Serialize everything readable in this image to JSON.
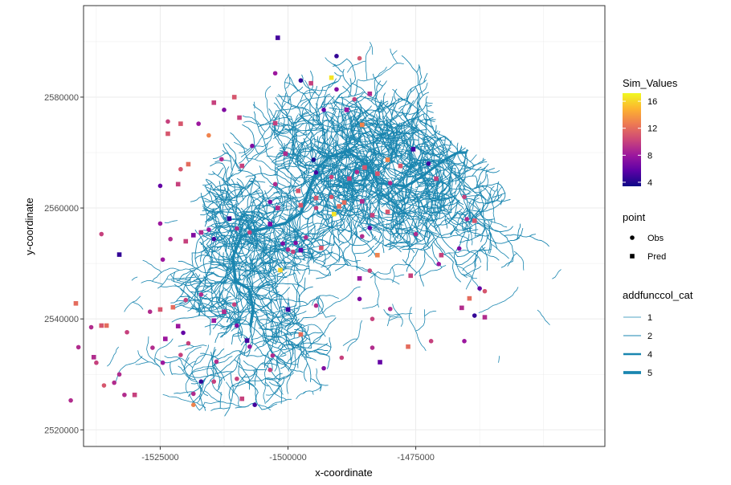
{
  "chart_data": {
    "type": "scatter",
    "xlabel": "x-coordinate",
    "ylabel": "y-coordinate",
    "xlim": [
      -1540000,
      -1438000
    ],
    "ylim": [
      2517000,
      2596500
    ],
    "x_ticks": [
      -1525000,
      -1500000,
      -1475000
    ],
    "x_tick_labels": [
      "-1525000",
      "-1500000",
      "-1475000"
    ],
    "y_ticks": [
      2520000,
      2540000,
      2560000,
      2580000
    ],
    "y_tick_labels": [
      "2520000",
      "2540000",
      "2560000",
      "2580000"
    ],
    "grid": true,
    "legend_position": "right",
    "sim_values_legend": {
      "title": "Sim_Values",
      "range": [
        3.4,
        17.2
      ],
      "breaks": [
        4,
        8,
        12,
        16
      ],
      "break_labels": [
        "4",
        "8",
        "12",
        "16"
      ],
      "colors": [
        "#0d0887",
        "#5c01a6",
        "#9c179e",
        "#cc4778",
        "#ed7953",
        "#fdb42f",
        "#f0f921"
      ]
    },
    "point_legend": {
      "title": "point",
      "entries": [
        {
          "label": "Obs",
          "shape": "circle"
        },
        {
          "label": "Pred",
          "shape": "square"
        }
      ]
    },
    "network_legend": {
      "title": "addfunccol_cat",
      "entries": [
        {
          "label": "1",
          "width": 0.8
        },
        {
          "label": "2",
          "width": 1.0
        },
        {
          "label": "4",
          "width": 2.5
        },
        {
          "label": "5",
          "width": 3.8
        }
      ],
      "color": "#1a86b0"
    },
    "points": [
      {
        "x": -1502000,
        "y": 2590700,
        "v": 5,
        "shape": "Pred"
      },
      {
        "x": -1490500,
        "y": 2587400,
        "v": 4.5,
        "shape": "Obs"
      },
      {
        "x": -1486000,
        "y": 2587000,
        "v": 11,
        "shape": "Obs"
      },
      {
        "x": -1491500,
        "y": 2583500,
        "v": 16.5,
        "shape": "Pred"
      },
      {
        "x": -1497500,
        "y": 2583000,
        "v": 4.5,
        "shape": "Obs"
      },
      {
        "x": -1495500,
        "y": 2582500,
        "v": 10,
        "shape": "Pred"
      },
      {
        "x": -1502500,
        "y": 2584300,
        "v": 8,
        "shape": "Obs"
      },
      {
        "x": -1490500,
        "y": 2581400,
        "v": 7,
        "shape": "Obs"
      },
      {
        "x": -1487000,
        "y": 2579600,
        "v": 10,
        "shape": "Obs"
      },
      {
        "x": -1484000,
        "y": 2580600,
        "v": 9,
        "shape": "Pred"
      },
      {
        "x": -1510500,
        "y": 2580000,
        "v": 11,
        "shape": "Pred"
      },
      {
        "x": -1514500,
        "y": 2579000,
        "v": 10,
        "shape": "Pred"
      },
      {
        "x": -1512500,
        "y": 2577700,
        "v": 7,
        "shape": "Obs"
      },
      {
        "x": -1509500,
        "y": 2576300,
        "v": 10,
        "shape": "Pred"
      },
      {
        "x": -1502500,
        "y": 2575300,
        "v": 10,
        "shape": "Pred"
      },
      {
        "x": -1523500,
        "y": 2575600,
        "v": 10,
        "shape": "Obs"
      },
      {
        "x": -1523500,
        "y": 2573400,
        "v": 11,
        "shape": "Pred"
      },
      {
        "x": -1521000,
        "y": 2575200,
        "v": 11,
        "shape": "Pred"
      },
      {
        "x": -1517500,
        "y": 2575200,
        "v": 8,
        "shape": "Obs"
      },
      {
        "x": -1515500,
        "y": 2573100,
        "v": 13,
        "shape": "Obs"
      },
      {
        "x": -1493000,
        "y": 2577700,
        "v": 6,
        "shape": "Obs"
      },
      {
        "x": -1488500,
        "y": 2577700,
        "v": 8,
        "shape": "Pred"
      },
      {
        "x": -1485500,
        "y": 2575000,
        "v": 13,
        "shape": "Pred"
      },
      {
        "x": -1507000,
        "y": 2571200,
        "v": 7,
        "shape": "Obs"
      },
      {
        "x": -1500500,
        "y": 2569800,
        "v": 9,
        "shape": "Pred"
      },
      {
        "x": -1495000,
        "y": 2568700,
        "v": 3.8,
        "shape": "Obs"
      },
      {
        "x": -1494500,
        "y": 2566400,
        "v": 5,
        "shape": "Obs"
      },
      {
        "x": -1491500,
        "y": 2565600,
        "v": 10,
        "shape": "Obs"
      },
      {
        "x": -1488000,
        "y": 2565300,
        "v": 10,
        "shape": "Pred"
      },
      {
        "x": -1486500,
        "y": 2566500,
        "v": 9,
        "shape": "Obs"
      },
      {
        "x": -1485000,
        "y": 2567300,
        "v": 11,
        "shape": "Pred"
      },
      {
        "x": -1482500,
        "y": 2566200,
        "v": 11,
        "shape": "Pred"
      },
      {
        "x": -1480500,
        "y": 2568700,
        "v": 13,
        "shape": "Pred"
      },
      {
        "x": -1478000,
        "y": 2567600,
        "v": 11,
        "shape": "Pred"
      },
      {
        "x": -1475500,
        "y": 2570600,
        "v": 5,
        "shape": "Pred"
      },
      {
        "x": -1472500,
        "y": 2568000,
        "v": 5,
        "shape": "Obs"
      },
      {
        "x": -1471000,
        "y": 2565300,
        "v": 10,
        "shape": "Pred"
      },
      {
        "x": -1480000,
        "y": 2564500,
        "v": 9,
        "shape": "Obs"
      },
      {
        "x": -1521000,
        "y": 2567000,
        "v": 11,
        "shape": "Obs"
      },
      {
        "x": -1519500,
        "y": 2567900,
        "v": 12,
        "shape": "Pred"
      },
      {
        "x": -1521500,
        "y": 2564300,
        "v": 10,
        "shape": "Pred"
      },
      {
        "x": -1525000,
        "y": 2564000,
        "v": 6,
        "shape": "Obs"
      },
      {
        "x": -1513000,
        "y": 2568800,
        "v": 9,
        "shape": "Obs"
      },
      {
        "x": -1509000,
        "y": 2567600,
        "v": 10,
        "shape": "Pred"
      },
      {
        "x": -1502500,
        "y": 2564300,
        "v": 9,
        "shape": "Obs"
      },
      {
        "x": -1498000,
        "y": 2563100,
        "v": 11,
        "shape": "Pred"
      },
      {
        "x": -1494500,
        "y": 2561800,
        "v": 11,
        "shape": "Pred"
      },
      {
        "x": -1503500,
        "y": 2561100,
        "v": 7,
        "shape": "Obs"
      },
      {
        "x": -1502000,
        "y": 2560000,
        "v": 9,
        "shape": "Pred"
      },
      {
        "x": -1497500,
        "y": 2560500,
        "v": 11,
        "shape": "Pred"
      },
      {
        "x": -1494500,
        "y": 2560000,
        "v": 10,
        "shape": "Obs"
      },
      {
        "x": -1491500,
        "y": 2562000,
        "v": 11,
        "shape": "Obs"
      },
      {
        "x": -1490000,
        "y": 2560300,
        "v": 12,
        "shape": "Pred"
      },
      {
        "x": -1489000,
        "y": 2561000,
        "v": 12,
        "shape": "Pred"
      },
      {
        "x": -1491000,
        "y": 2558900,
        "v": 16.5,
        "shape": "Pred"
      },
      {
        "x": -1485500,
        "y": 2561200,
        "v": 9,
        "shape": "Pred"
      },
      {
        "x": -1483500,
        "y": 2558700,
        "v": 10,
        "shape": "Pred"
      },
      {
        "x": -1480500,
        "y": 2559300,
        "v": 11,
        "shape": "Pred"
      },
      {
        "x": -1511500,
        "y": 2558100,
        "v": 4.5,
        "shape": "Pred"
      },
      {
        "x": -1510000,
        "y": 2556300,
        "v": 9,
        "shape": "Obs"
      },
      {
        "x": -1507500,
        "y": 2555600,
        "v": 10,
        "shape": "Obs"
      },
      {
        "x": -1503500,
        "y": 2557100,
        "v": 7,
        "shape": "Pred"
      },
      {
        "x": -1515500,
        "y": 2556100,
        "v": 8,
        "shape": "Obs"
      },
      {
        "x": -1517000,
        "y": 2555600,
        "v": 9,
        "shape": "Pred"
      },
      {
        "x": -1518500,
        "y": 2555100,
        "v": 7,
        "shape": "Pred"
      },
      {
        "x": -1514500,
        "y": 2554400,
        "v": 5,
        "shape": "Obs"
      },
      {
        "x": -1525000,
        "y": 2557200,
        "v": 8,
        "shape": "Obs"
      },
      {
        "x": -1523000,
        "y": 2554400,
        "v": 9,
        "shape": "Obs"
      },
      {
        "x": -1520000,
        "y": 2554000,
        "v": 10,
        "shape": "Pred"
      },
      {
        "x": -1536500,
        "y": 2555300,
        "v": 10,
        "shape": "Obs"
      },
      {
        "x": -1533000,
        "y": 2551600,
        "v": 4.5,
        "shape": "Pred"
      },
      {
        "x": -1524500,
        "y": 2550700,
        "v": 8,
        "shape": "Obs"
      },
      {
        "x": -1496500,
        "y": 2554700,
        "v": 9,
        "shape": "Obs"
      },
      {
        "x": -1493500,
        "y": 2552800,
        "v": 11,
        "shape": "Pred"
      },
      {
        "x": -1501000,
        "y": 2553600,
        "v": 7,
        "shape": "Obs"
      },
      {
        "x": -1498500,
        "y": 2553700,
        "v": 7,
        "shape": "Obs"
      },
      {
        "x": -1497500,
        "y": 2552400,
        "v": 6,
        "shape": "Pred"
      },
      {
        "x": -1500000,
        "y": 2552500,
        "v": 9,
        "shape": "Obs"
      },
      {
        "x": -1499000,
        "y": 2552100,
        "v": 10,
        "shape": "Obs"
      },
      {
        "x": -1485500,
        "y": 2554900,
        "v": 9,
        "shape": "Obs"
      },
      {
        "x": -1484000,
        "y": 2556400,
        "v": 6,
        "shape": "Obs"
      },
      {
        "x": -1482500,
        "y": 2551500,
        "v": 13,
        "shape": "Pred"
      },
      {
        "x": -1501500,
        "y": 2548800,
        "v": 16,
        "shape": "Pred"
      },
      {
        "x": -1486000,
        "y": 2547300,
        "v": 8,
        "shape": "Pred"
      },
      {
        "x": -1484000,
        "y": 2548700,
        "v": 10,
        "shape": "Obs"
      },
      {
        "x": -1475000,
        "y": 2555300,
        "v": 9,
        "shape": "Obs"
      },
      {
        "x": -1470000,
        "y": 2551500,
        "v": 10,
        "shape": "Pred"
      },
      {
        "x": -1466500,
        "y": 2552700,
        "v": 7,
        "shape": "Obs"
      },
      {
        "x": -1470500,
        "y": 2549900,
        "v": 8,
        "shape": "Obs"
      },
      {
        "x": -1476000,
        "y": 2547800,
        "v": 10,
        "shape": "Pred"
      },
      {
        "x": -1465000,
        "y": 2558000,
        "v": 9,
        "shape": "Obs"
      },
      {
        "x": -1463500,
        "y": 2557700,
        "v": 11,
        "shape": "Pred"
      },
      {
        "x": -1465500,
        "y": 2562000,
        "v": 10,
        "shape": "Obs"
      },
      {
        "x": -1462500,
        "y": 2545500,
        "v": 6,
        "shape": "Obs"
      },
      {
        "x": -1461500,
        "y": 2545000,
        "v": 11,
        "shape": "Obs"
      },
      {
        "x": -1464500,
        "y": 2543700,
        "v": 12,
        "shape": "Pred"
      },
      {
        "x": -1466000,
        "y": 2542000,
        "v": 9,
        "shape": "Pred"
      },
      {
        "x": -1463500,
        "y": 2540600,
        "v": 4.5,
        "shape": "Obs"
      },
      {
        "x": -1461500,
        "y": 2540300,
        "v": 9,
        "shape": "Pred"
      },
      {
        "x": -1500000,
        "y": 2541700,
        "v": 5,
        "shape": "Pred"
      },
      {
        "x": -1494500,
        "y": 2542400,
        "v": 9,
        "shape": "Obs"
      },
      {
        "x": -1486000,
        "y": 2543600,
        "v": 7,
        "shape": "Obs"
      },
      {
        "x": -1483500,
        "y": 2540000,
        "v": 10,
        "shape": "Obs"
      },
      {
        "x": -1480000,
        "y": 2541800,
        "v": 9,
        "shape": "Obs"
      },
      {
        "x": -1510500,
        "y": 2542600,
        "v": 10,
        "shape": "Obs"
      },
      {
        "x": -1512500,
        "y": 2541300,
        "v": 9,
        "shape": "Pred"
      },
      {
        "x": -1514500,
        "y": 2539700,
        "v": 8,
        "shape": "Pred"
      },
      {
        "x": -1517000,
        "y": 2544400,
        "v": 9,
        "shape": "Obs"
      },
      {
        "x": -1520000,
        "y": 2543400,
        "v": 10,
        "shape": "Obs"
      },
      {
        "x": -1522500,
        "y": 2542100,
        "v": 12,
        "shape": "Pred"
      },
      {
        "x": -1525000,
        "y": 2541700,
        "v": 11,
        "shape": "Pred"
      },
      {
        "x": -1527000,
        "y": 2541300,
        "v": 9,
        "shape": "Obs"
      },
      {
        "x": -1521500,
        "y": 2538700,
        "v": 8,
        "shape": "Pred"
      },
      {
        "x": -1520500,
        "y": 2537500,
        "v": 6,
        "shape": "Obs"
      },
      {
        "x": -1524000,
        "y": 2536400,
        "v": 8,
        "shape": "Pred"
      },
      {
        "x": -1519500,
        "y": 2535600,
        "v": 10,
        "shape": "Obs"
      },
      {
        "x": -1541500,
        "y": 2542800,
        "v": 12,
        "shape": "Pred"
      },
      {
        "x": -1538500,
        "y": 2538500,
        "v": 9,
        "shape": "Obs"
      },
      {
        "x": -1536500,
        "y": 2538800,
        "v": 11,
        "shape": "Pred"
      },
      {
        "x": -1535500,
        "y": 2538800,
        "v": 12,
        "shape": "Pred"
      },
      {
        "x": -1531500,
        "y": 2537600,
        "v": 10,
        "shape": "Obs"
      },
      {
        "x": -1541000,
        "y": 2534900,
        "v": 9,
        "shape": "Obs"
      },
      {
        "x": -1538000,
        "y": 2533100,
        "v": 9,
        "shape": "Pred"
      },
      {
        "x": -1537500,
        "y": 2532100,
        "v": 10,
        "shape": "Obs"
      },
      {
        "x": -1533000,
        "y": 2530000,
        "v": 9,
        "shape": "Obs"
      },
      {
        "x": -1536000,
        "y": 2528000,
        "v": 11,
        "shape": "Obs"
      },
      {
        "x": -1534000,
        "y": 2528500,
        "v": 9,
        "shape": "Obs"
      },
      {
        "x": -1532000,
        "y": 2526300,
        "v": 9,
        "shape": "Obs"
      },
      {
        "x": -1530000,
        "y": 2526300,
        "v": 10,
        "shape": "Pred"
      },
      {
        "x": -1542500,
        "y": 2525300,
        "v": 9,
        "shape": "Obs"
      },
      {
        "x": -1526500,
        "y": 2534800,
        "v": 9,
        "shape": "Obs"
      },
      {
        "x": -1524500,
        "y": 2532100,
        "v": 8,
        "shape": "Obs"
      },
      {
        "x": -1521000,
        "y": 2533500,
        "v": 10,
        "shape": "Obs"
      },
      {
        "x": -1514000,
        "y": 2532300,
        "v": 9,
        "shape": "Obs"
      },
      {
        "x": -1510000,
        "y": 2538800,
        "v": 7,
        "shape": "Obs"
      },
      {
        "x": -1508000,
        "y": 2536100,
        "v": 5,
        "shape": "Pred"
      },
      {
        "x": -1507500,
        "y": 2535000,
        "v": 8,
        "shape": "Obs"
      },
      {
        "x": -1503000,
        "y": 2533400,
        "v": 9,
        "shape": "Obs"
      },
      {
        "x": -1497500,
        "y": 2537200,
        "v": 12,
        "shape": "Pred"
      },
      {
        "x": -1493000,
        "y": 2531100,
        "v": 7,
        "shape": "Obs"
      },
      {
        "x": -1518500,
        "y": 2526500,
        "v": 9,
        "shape": "Obs"
      },
      {
        "x": -1518500,
        "y": 2524500,
        "v": 13,
        "shape": "Obs"
      },
      {
        "x": -1514500,
        "y": 2528700,
        "v": 10,
        "shape": "Obs"
      },
      {
        "x": -1517000,
        "y": 2528700,
        "v": 4.5,
        "shape": "Obs"
      },
      {
        "x": -1510000,
        "y": 2529200,
        "v": 10,
        "shape": "Obs"
      },
      {
        "x": -1509000,
        "y": 2525600,
        "v": 10,
        "shape": "Pred"
      },
      {
        "x": -1506500,
        "y": 2524500,
        "v": 5,
        "shape": "Obs"
      },
      {
        "x": -1503500,
        "y": 2530800,
        "v": 10,
        "shape": "Obs"
      },
      {
        "x": -1489500,
        "y": 2533000,
        "v": 10,
        "shape": "Obs"
      },
      {
        "x": -1483500,
        "y": 2534800,
        "v": 9,
        "shape": "Obs"
      },
      {
        "x": -1482000,
        "y": 2532200,
        "v": 6,
        "shape": "Pred"
      },
      {
        "x": -1476500,
        "y": 2535000,
        "v": 12,
        "shape": "Pred"
      },
      {
        "x": -1472000,
        "y": 2536000,
        "v": 10,
        "shape": "Obs"
      },
      {
        "x": -1465500,
        "y": 2536000,
        "v": 8,
        "shape": "Obs"
      }
    ]
  }
}
